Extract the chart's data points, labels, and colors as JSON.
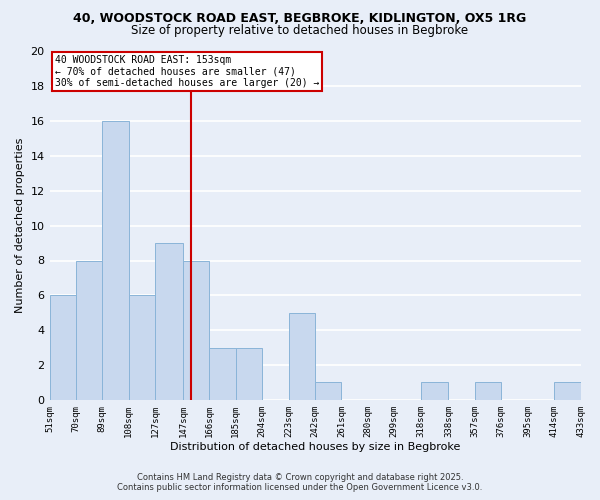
{
  "title_line1": "40, WOODSTOCK ROAD EAST, BEGBROKE, KIDLINGTON, OX5 1RG",
  "title_line2": "Size of property relative to detached houses in Begbroke",
  "xlabel": "Distribution of detached houses by size in Begbroke",
  "ylabel": "Number of detached properties",
  "bar_color": "#c8d8ee",
  "bar_edge_color": "#8ab4d8",
  "bins": [
    51,
    70,
    89,
    108,
    127,
    147,
    166,
    185,
    204,
    223,
    242,
    261,
    280,
    299,
    318,
    338,
    357,
    376,
    395,
    414,
    433
  ],
  "counts": [
    6,
    8,
    16,
    6,
    9,
    8,
    3,
    3,
    0,
    5,
    1,
    0,
    0,
    0,
    1,
    0,
    1,
    0,
    0,
    1
  ],
  "tick_labels": [
    "51sqm",
    "70sqm",
    "89sqm",
    "108sqm",
    "127sqm",
    "147sqm",
    "166sqm",
    "185sqm",
    "204sqm",
    "223sqm",
    "242sqm",
    "261sqm",
    "280sqm",
    "299sqm",
    "318sqm",
    "338sqm",
    "357sqm",
    "376sqm",
    "395sqm",
    "414sqm",
    "433sqm"
  ],
  "ylim": [
    0,
    20
  ],
  "yticks": [
    0,
    2,
    4,
    6,
    8,
    10,
    12,
    14,
    16,
    18,
    20
  ],
  "vline_x": 153,
  "vline_color": "#cc0000",
  "annotation_line1": "40 WOODSTOCK ROAD EAST: 153sqm",
  "annotation_line2": "← 70% of detached houses are smaller (47)",
  "annotation_line3": "30% of semi-detached houses are larger (20) →",
  "background_color": "#e8eef8",
  "grid_color": "#ffffff",
  "footer_line1": "Contains HM Land Registry data © Crown copyright and database right 2025.",
  "footer_line2": "Contains public sector information licensed under the Open Government Licence v3.0."
}
